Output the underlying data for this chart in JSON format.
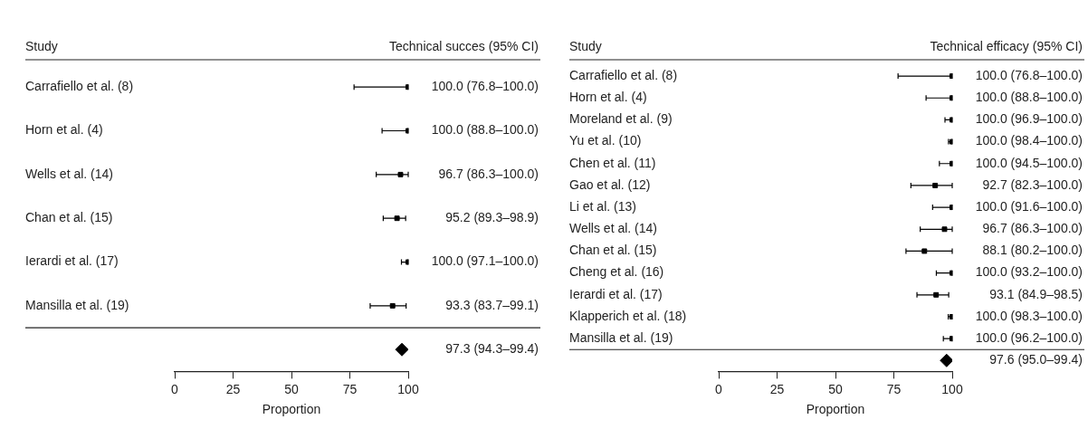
{
  "chart_data": [
    {
      "type": "scatter",
      "orientation": "horizontal",
      "ylabel": "Study",
      "xlabel": "Proportion",
      "annotations": [
        "Technical succes (95% CI)"
      ],
      "categories": [
        "Carrafiello et al. (8)",
        "Horn et al. (4)",
        "Wells et al. (14)",
        "Chan et al. (15)",
        "Ierardi et al. (17)",
        "Mansilla et al. (19)",
        null
      ],
      "series": [
        {
          "color": "#000000",
          "marker": "square",
          "values": [
            100.0,
            100.0,
            96.7,
            95.2,
            100.0,
            93.3,
            null
          ],
          "errors": [
            [
              76.8,
              100.0
            ],
            [
              88.8,
              100.0
            ],
            [
              86.3,
              100.0
            ],
            [
              89.3,
              98.9
            ],
            [
              97.1,
              100.0
            ],
            [
              83.7,
              99.1
            ],
            null
          ],
          "value_labels": [
            "100.0 (76.8–100.0)",
            "100.0 (88.8–100.0)",
            "96.7 (86.3–100.0)",
            "95.2 (89.3–98.9)",
            "100.0 (97.1–100.0)",
            "93.3 (83.7–99.1)",
            null
          ]
        },
        {
          "color": "#000000",
          "marker": "diamond",
          "values": [
            null,
            null,
            null,
            null,
            null,
            null,
            97.3
          ],
          "value_labels": [
            null,
            null,
            null,
            null,
            null,
            null,
            "97.3 (94.3–99.4)"
          ]
        }
      ],
      "xlim": [
        0,
        100
      ],
      "xticks": [
        0,
        25,
        50,
        75,
        100
      ],
      "grid": false,
      "legend": false
    },
    {
      "type": "scatter",
      "orientation": "horizontal",
      "ylabel": "Study",
      "xlabel": "Proportion",
      "annotations": [
        "Technical efficacy (95% CI)"
      ],
      "categories": [
        "Carrafiello et al. (8)",
        "Horn et al. (4)",
        "Moreland et al. (9)",
        "Yu et al. (10)",
        "Chen et al. (11)",
        "Gao et al. (12)",
        "Li et al. (13)",
        "Wells et al. (14)",
        "Chan et al. (15)",
        "Cheng et al. (16)",
        "Ierardi et al. (17)",
        "Klapperich et al. (18)",
        "Mansilla et al. (19)",
        null
      ],
      "series": [
        {
          "color": "#000000",
          "marker": "square",
          "values": [
            100.0,
            100.0,
            100.0,
            100.0,
            100.0,
            92.7,
            100.0,
            96.7,
            88.1,
            100.0,
            93.1,
            100.0,
            100.0,
            null
          ],
          "errors": [
            [
              76.8,
              100.0
            ],
            [
              88.8,
              100.0
            ],
            [
              96.9,
              100.0
            ],
            [
              98.4,
              100.0
            ],
            [
              94.5,
              100.0
            ],
            [
              82.3,
              100.0
            ],
            [
              91.6,
              100.0
            ],
            [
              86.3,
              100.0
            ],
            [
              80.2,
              100.0
            ],
            [
              93.2,
              100.0
            ],
            [
              84.9,
              98.5
            ],
            [
              98.3,
              100.0
            ],
            [
              96.2,
              100.0
            ],
            null
          ],
          "value_labels": [
            "100.0 (76.8–100.0)",
            "100.0 (88.8–100.0)",
            "100.0 (96.9–100.0)",
            "100.0 (98.4–100.0)",
            "100.0 (94.5–100.0)",
            "92.7 (82.3–100.0)",
            "100.0 (91.6–100.0)",
            "96.7 (86.3–100.0)",
            "88.1 (80.2–100.0)",
            "100.0 (93.2–100.0)",
            "93.1 (84.9–98.5)",
            "100.0 (98.3–100.0)",
            "100.0 (96.2–100.0)",
            null
          ]
        },
        {
          "color": "#000000",
          "marker": "diamond",
          "values": [
            null,
            null,
            null,
            null,
            null,
            null,
            null,
            null,
            null,
            null,
            null,
            null,
            null,
            97.6
          ],
          "value_labels": [
            null,
            null,
            null,
            null,
            null,
            null,
            null,
            null,
            null,
            null,
            null,
            null,
            null,
            "97.6 (95.0–99.4)"
          ]
        }
      ],
      "xlim": [
        0,
        100
      ],
      "xticks": [
        0,
        25,
        50,
        75,
        100
      ],
      "grid": false,
      "legend": false
    }
  ]
}
